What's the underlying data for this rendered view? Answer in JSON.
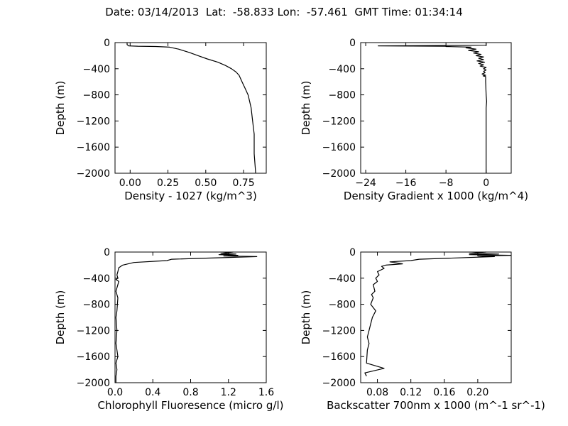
{
  "header": {
    "title": "Date: 03/14/2013  Lat:  -58.833 Lon:  -57.461  GMT Time: 01:34:14"
  },
  "chart_data": [
    {
      "type": "line",
      "ylabel": "Depth (m)",
      "xlabel": "Density - 1027 (kg/m^3)",
      "xlim": [
        -0.1,
        0.9
      ],
      "ylim": [
        -2000,
        0
      ],
      "xticks": [
        0.0,
        0.25,
        0.5,
        0.75
      ],
      "xtick_labels": [
        "0.00",
        "0.25",
        "0.50",
        "0.75"
      ],
      "yticks": [
        0,
        -400,
        -800,
        -1200,
        -1600,
        -2000
      ],
      "ytick_labels": [
        "0",
        "−400",
        "−800",
        "−1200",
        "−1600",
        "−2000"
      ],
      "series": [
        {
          "x": [
            -0.02,
            -0.02,
            -0.01,
            0.05,
            0.17,
            0.26,
            0.32,
            0.39,
            0.45,
            0.51,
            0.58,
            0.63,
            0.67,
            0.7,
            0.72,
            0.74,
            0.76,
            0.78,
            0.79,
            0.8,
            0.81,
            0.82,
            0.82,
            0.83
          ],
          "y": [
            0,
            -30,
            -50,
            -55,
            -60,
            -70,
            -100,
            -150,
            -200,
            -250,
            -300,
            -350,
            -400,
            -450,
            -500,
            -600,
            -700,
            -800,
            -900,
            -1000,
            -1200,
            -1400,
            -1700,
            -2000
          ]
        }
      ]
    },
    {
      "type": "line",
      "ylabel": "Depth (m)",
      "xlabel": "Density Gradient x 1000 (kg/m^4)",
      "xlim": [
        -25,
        5
      ],
      "ylim": [
        -2000,
        0
      ],
      "xticks": [
        -24,
        -16,
        -8,
        0
      ],
      "xtick_labels": [
        "−24",
        "−16",
        "−8",
        "0"
      ],
      "yticks": [
        0,
        -400,
        -800,
        -1200,
        -1600,
        -2000
      ],
      "ytick_labels": [
        "0",
        "−400",
        "−800",
        "−1200",
        "−1600",
        "−2000"
      ],
      "series": [
        {
          "x": [
            0,
            0,
            -21.5,
            -8,
            -8,
            -3,
            -4,
            -2,
            -3.5,
            -1.5,
            -2.5,
            -1,
            -2,
            -0.5,
            -1.5,
            -0.5,
            -1.8,
            -0.3,
            -1.5,
            -0.5,
            -1.2,
            0,
            -0.5,
            0,
            -0.5,
            -0.2,
            -0.8,
            -0.1,
            -0.6,
            -0.1,
            -0.1,
            0,
            0.1,
            0,
            0,
            0
          ],
          "y": [
            0,
            -40,
            -50,
            -55,
            -60,
            -70,
            -80,
            -100,
            -120,
            -140,
            -160,
            -180,
            -200,
            -220,
            -240,
            -260,
            -280,
            -300,
            -320,
            -340,
            -360,
            -380,
            -400,
            -420,
            -440,
            -460,
            -480,
            -500,
            -510,
            -520,
            -600,
            -800,
            -900,
            -1000,
            -1500,
            -2000
          ]
        }
      ]
    },
    {
      "type": "line",
      "ylabel": "Depth (m)",
      "xlabel": "Chlorophyll Fluoresence (micro g/l)",
      "xlim": [
        0,
        1.6
      ],
      "ylim": [
        -2000,
        0
      ],
      "xticks": [
        0.0,
        0.4,
        0.8,
        1.2,
        1.6
      ],
      "xtick_labels": [
        "0.0",
        "0.4",
        "0.8",
        "1.2",
        "1.6"
      ],
      "yticks": [
        0,
        -400,
        -800,
        -1200,
        -1600,
        -2000
      ],
      "ytick_labels": [
        "0",
        "−400",
        "−800",
        "−1200",
        "−1600",
        "−2000"
      ],
      "series": [
        {
          "x": [
            1.25,
            1.12,
            1.28,
            1.1,
            1.3,
            1.15,
            1.5,
            0.6,
            0.55,
            0.2,
            0.08,
            0.04,
            0.03,
            0.02,
            0.03,
            0.01,
            0.04,
            0.01,
            0.03,
            0.02,
            0.01,
            0.02,
            0.01,
            0.02,
            0.03,
            0.01,
            0.02,
            0.01,
            0.01
          ],
          "y": [
            0,
            -20,
            -30,
            -40,
            -50,
            -60,
            -70,
            -110,
            -130,
            -160,
            -200,
            -240,
            -300,
            -350,
            -400,
            -420,
            -450,
            -600,
            -700,
            -900,
            -1000,
            -1200,
            -1400,
            -1500,
            -1600,
            -1700,
            -1800,
            -1900,
            -2000
          ]
        }
      ]
    },
    {
      "type": "line",
      "ylabel": "Depth (m)",
      "xlabel": "Backscatter 700nm x 1000 (m^-1 sr^-1)",
      "xlim": [
        0.06,
        0.24
      ],
      "ylim": [
        -2000,
        0
      ],
      "xticks": [
        0.08,
        0.12,
        0.16,
        0.2
      ],
      "xtick_labels": [
        "0.08",
        "0.12",
        "0.16",
        "0.20"
      ],
      "yticks": [
        0,
        -400,
        -800,
        -1200,
        -1600,
        -2000
      ],
      "ytick_labels": [
        "0",
        "−400",
        "−800",
        "−1200",
        "−1600",
        "−2000"
      ],
      "series": [
        {
          "x": [
            0.21,
            0.19,
            0.225,
            0.19,
            0.24,
            0.2,
            0.22,
            0.13,
            0.12,
            0.095,
            0.11,
            0.09,
            0.085,
            0.088,
            0.08,
            0.082,
            0.078,
            0.08,
            0.075,
            0.077,
            0.073,
            0.075,
            0.072,
            0.078,
            0.074,
            0.072,
            0.07,
            0.068,
            0.07,
            0.068,
            0.067,
            0.088,
            0.065,
            0.067
          ],
          "y": [
            0,
            -20,
            -30,
            -40,
            -50,
            -60,
            -70,
            -110,
            -130,
            -150,
            -180,
            -200,
            -220,
            -250,
            -300,
            -350,
            -400,
            -450,
            -500,
            -600,
            -650,
            -700,
            -800,
            -900,
            -1000,
            -1100,
            -1200,
            -1300,
            -1400,
            -1500,
            -1700,
            -1780,
            -1850,
            -1900
          ]
        }
      ]
    }
  ]
}
